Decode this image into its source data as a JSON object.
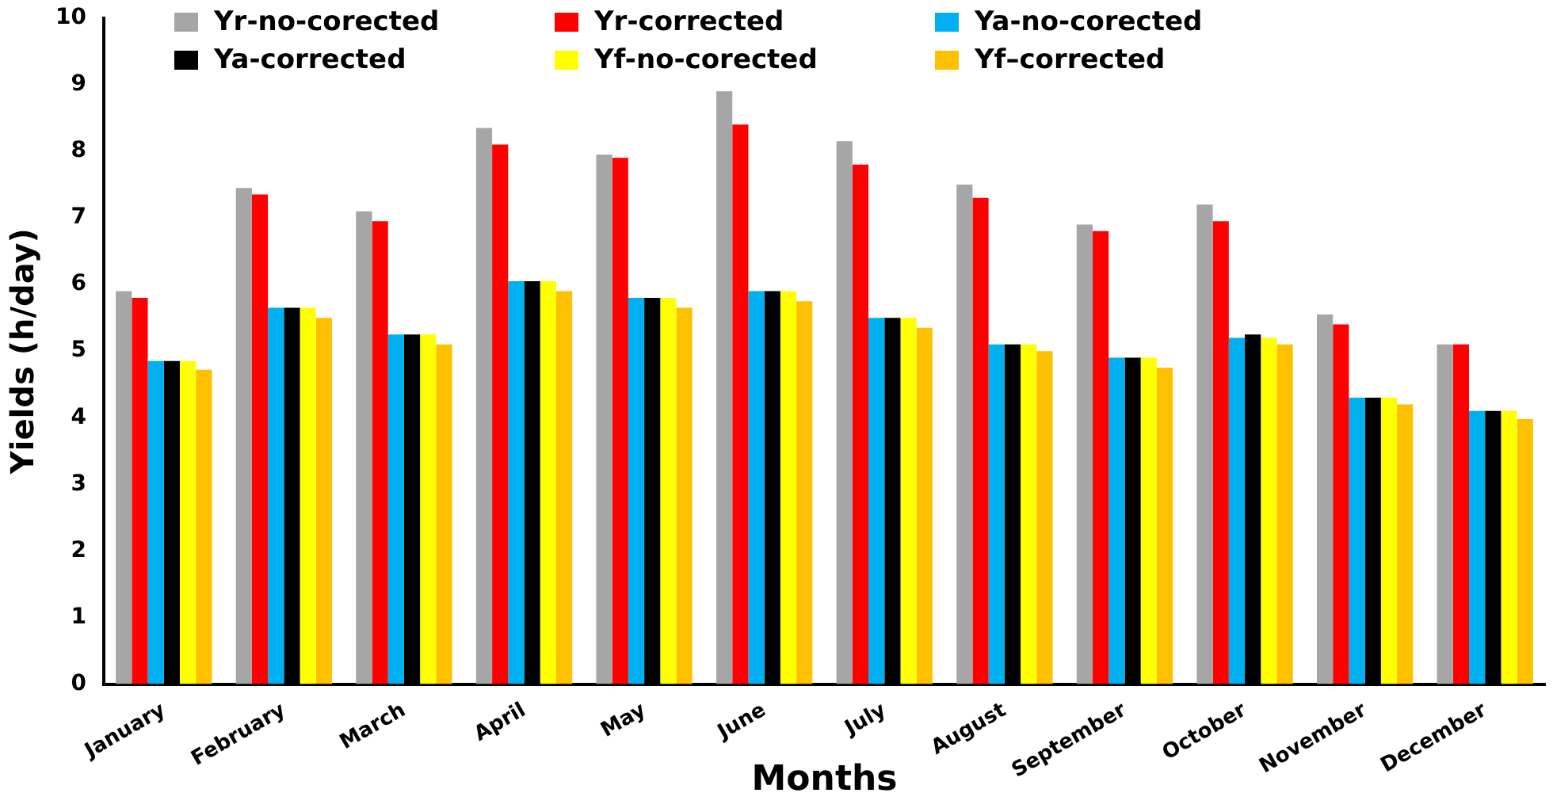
{
  "chart_data": {
    "type": "bar",
    "xlabel": "Months",
    "ylabel": "Yields (h/day)",
    "categories": [
      "January",
      "February",
      "March",
      "April",
      "May",
      "June",
      "July",
      "August",
      "September",
      "October",
      "November",
      "December"
    ],
    "series": [
      {
        "name": "Yr-no-corected",
        "color": "#a6a6a6",
        "values": [
          5.9,
          7.45,
          7.1,
          8.35,
          7.95,
          8.9,
          8.15,
          7.5,
          6.9,
          7.2,
          5.55,
          5.1
        ]
      },
      {
        "name": "Yr-corrected",
        "color": "#ff0000",
        "values": [
          5.8,
          7.35,
          6.95,
          8.1,
          7.9,
          8.4,
          7.8,
          7.3,
          6.8,
          6.95,
          5.4,
          5.1
        ]
      },
      {
        "name": "Ya-no-corected",
        "color": "#00b0f0",
        "values": [
          4.85,
          5.65,
          5.25,
          6.05,
          5.8,
          5.9,
          5.5,
          5.1,
          4.9,
          5.2,
          4.3,
          4.1
        ]
      },
      {
        "name": "Ya-corrected",
        "color": "#000000",
        "values": [
          4.85,
          5.65,
          5.25,
          6.05,
          5.8,
          5.9,
          5.5,
          5.1,
          4.9,
          5.25,
          4.3,
          4.1
        ]
      },
      {
        "name": "Yf-no-corected",
        "color": "#ffff00",
        "values": [
          4.85,
          5.65,
          5.25,
          6.05,
          5.8,
          5.9,
          5.5,
          5.1,
          4.9,
          5.2,
          4.3,
          4.1
        ]
      },
      {
        "name": "Yf–corrected",
        "color": "#ffc000",
        "values": [
          4.72,
          5.5,
          5.1,
          5.9,
          5.65,
          5.75,
          5.35,
          5.0,
          4.75,
          5.1,
          4.2,
          3.98
        ]
      }
    ],
    "ylim": [
      0,
      10
    ],
    "yticks": [
      0,
      1,
      2,
      3,
      4,
      5,
      6,
      7,
      8,
      9,
      10
    ],
    "grid": false,
    "legend": "top"
  }
}
